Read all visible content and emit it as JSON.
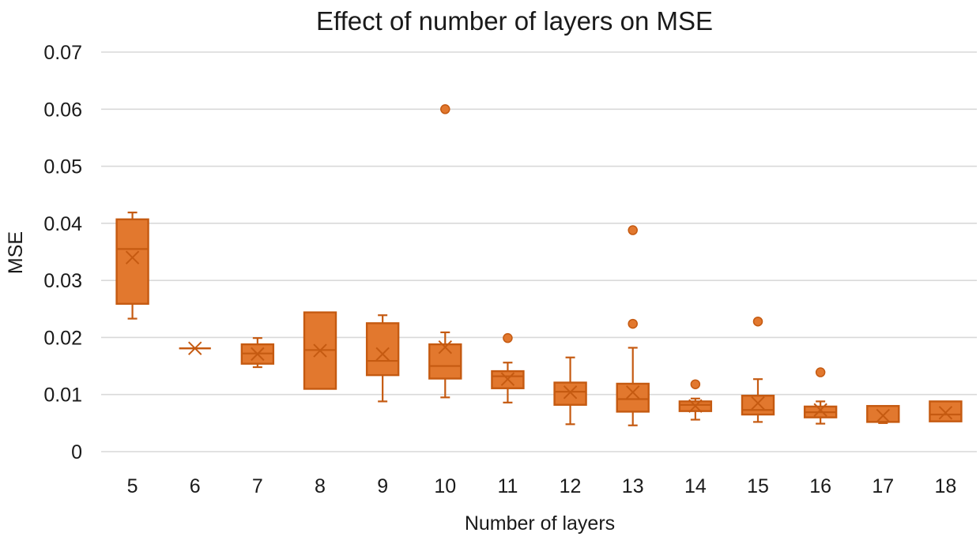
{
  "chart_data": {
    "type": "boxplot",
    "title": "Effect of number of layers on MSE",
    "xlabel": "Number of layers",
    "ylabel": "MSE",
    "ylim": [
      0,
      0.07
    ],
    "yticks": [
      0,
      0.01,
      0.02,
      0.03,
      0.04,
      0.05,
      0.06,
      0.07
    ],
    "ytick_labels": [
      "0",
      "0.01",
      "0.02",
      "0.03",
      "0.04",
      "0.05",
      "0.06",
      "0.07"
    ],
    "grid": true,
    "color": "#E2782E",
    "stroke_color": "#C55A11",
    "categories": [
      "5",
      "6",
      "7",
      "8",
      "9",
      "10",
      "11",
      "12",
      "13",
      "14",
      "15",
      "16",
      "17",
      "18"
    ],
    "boxes": [
      {
        "category": "5",
        "whisker_low": 0.0233,
        "q1": 0.0259,
        "median": 0.0355,
        "q3": 0.0407,
        "whisker_high": 0.0419,
        "mean": 0.034,
        "outliers": []
      },
      {
        "category": "6",
        "whisker_low": 0.0181,
        "q1": 0.0181,
        "median": 0.0181,
        "q3": 0.0181,
        "whisker_high": 0.0181,
        "mean": 0.0181,
        "outliers": []
      },
      {
        "category": "7",
        "whisker_low": 0.0148,
        "q1": 0.0154,
        "median": 0.0172,
        "q3": 0.0188,
        "whisker_high": 0.0199,
        "mean": 0.0171,
        "outliers": []
      },
      {
        "category": "8",
        "whisker_low": 0.011,
        "q1": 0.011,
        "median": 0.0178,
        "q3": 0.0244,
        "whisker_high": 0.0244,
        "mean": 0.0177,
        "outliers": []
      },
      {
        "category": "9",
        "whisker_low": 0.0088,
        "q1": 0.0134,
        "median": 0.0159,
        "q3": 0.0225,
        "whisker_high": 0.0239,
        "mean": 0.0171,
        "outliers": []
      },
      {
        "category": "10",
        "whisker_low": 0.0095,
        "q1": 0.0128,
        "median": 0.015,
        "q3": 0.0188,
        "whisker_high": 0.0209,
        "mean": 0.0183,
        "outliers": [
          0.06
        ]
      },
      {
        "category": "11",
        "whisker_low": 0.0086,
        "q1": 0.0111,
        "median": 0.0132,
        "q3": 0.0141,
        "whisker_high": 0.0156,
        "mean": 0.0127,
        "outliers": [
          0.0199
        ]
      },
      {
        "category": "12",
        "whisker_low": 0.0048,
        "q1": 0.0082,
        "median": 0.0105,
        "q3": 0.0121,
        "whisker_high": 0.0165,
        "mean": 0.0104,
        "outliers": []
      },
      {
        "category": "13",
        "whisker_low": 0.0046,
        "q1": 0.007,
        "median": 0.0092,
        "q3": 0.0119,
        "whisker_high": 0.0182,
        "mean": 0.0104,
        "outliers": [
          0.0224,
          0.0388
        ]
      },
      {
        "category": "14",
        "whisker_low": 0.0056,
        "q1": 0.0071,
        "median": 0.0082,
        "q3": 0.0088,
        "whisker_high": 0.0093,
        "mean": 0.008,
        "outliers": [
          0.0118
        ]
      },
      {
        "category": "15",
        "whisker_low": 0.0052,
        "q1": 0.0065,
        "median": 0.0073,
        "q3": 0.0098,
        "whisker_high": 0.0127,
        "mean": 0.0085,
        "outliers": [
          0.0228
        ]
      },
      {
        "category": "16",
        "whisker_low": 0.0049,
        "q1": 0.006,
        "median": 0.0069,
        "q3": 0.0079,
        "whisker_high": 0.0088,
        "mean": 0.0073,
        "outliers": [
          0.0139
        ]
      },
      {
        "category": "17",
        "whisker_low": 0.005,
        "q1": 0.0052,
        "median": 0.0052,
        "q3": 0.008,
        "whisker_high": 0.008,
        "mean": 0.0063,
        "outliers": []
      },
      {
        "category": "18",
        "whisker_low": 0.0053,
        "q1": 0.0053,
        "median": 0.0065,
        "q3": 0.0088,
        "whisker_high": 0.0088,
        "mean": 0.0068,
        "outliers": []
      }
    ]
  }
}
